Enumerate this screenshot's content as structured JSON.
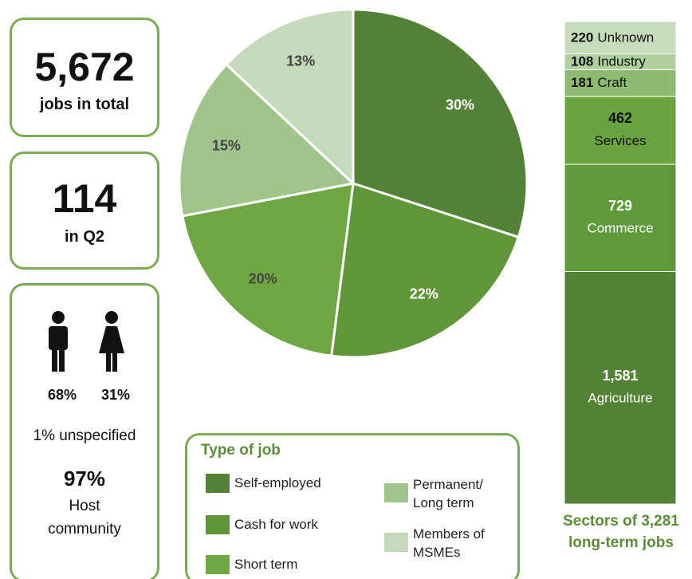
{
  "summary": {
    "total_value": "5,672",
    "total_label": "jobs in total",
    "quarter_value": "114",
    "quarter_label": "in Q2",
    "male": "68%",
    "female": "31%",
    "unspecified": "1% unspecified",
    "host_value": "97%",
    "host_label": "Host community"
  },
  "chart_data": [
    {
      "type": "pie",
      "legend_title": "Type of job",
      "categories": [
        "Self-employed",
        "Cash for work",
        "Short term",
        "Permanent/ Long term",
        "Members of MSMEs"
      ],
      "values": [
        30,
        22,
        20,
        15,
        13
      ],
      "value_labels": [
        "30%",
        "22%",
        "20%",
        "15%",
        "13%"
      ],
      "colors": [
        "#538135",
        "#5e9638",
        "#6fa843",
        "#a0c58a",
        "#c5dabb"
      ],
      "label_colors": [
        "#ffffff",
        "#ffffff",
        "#444444",
        "#444444",
        "#444444"
      ]
    },
    {
      "type": "stacked-bar",
      "title": "Sectors of 3,281 long-term jobs",
      "categories": [
        "Agriculture",
        "Commerce",
        "Services",
        "Craft",
        "Industry",
        "Unknown"
      ],
      "values": [
        1581,
        729,
        462,
        181,
        108,
        220
      ],
      "value_labels": [
        "1,581",
        "729",
        "462",
        "181",
        "108",
        "220"
      ],
      "colors": [
        "#548235",
        "#5f9a3a",
        "#6aa43f",
        "#8fbb70",
        "#b0cf9c",
        "#c7dcbb"
      ],
      "label_colors": [
        "#ffffff",
        "#ffffff",
        "#111111",
        "#111111",
        "#111111",
        "#111111"
      ]
    }
  ]
}
